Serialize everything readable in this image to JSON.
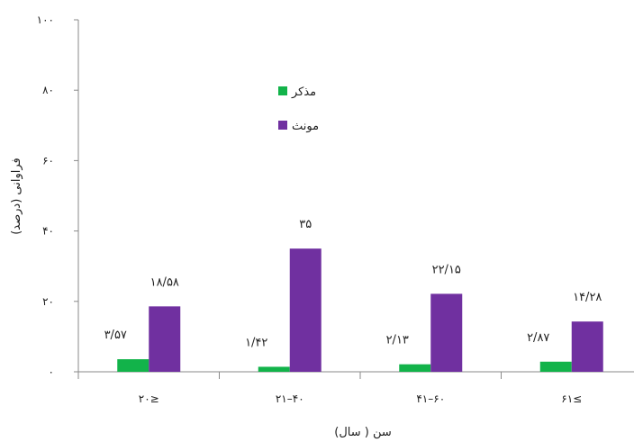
{
  "chart_data": {
    "type": "bar",
    "categories": [
      "۲۰≥",
      "۲۱–۴۰",
      "۴۱–۶۰",
      "۶۱≤"
    ],
    "series": [
      {
        "name": "مذکر",
        "color": "#12b34a",
        "values": [
          3.57,
          1.42,
          2.13,
          2.87
        ],
        "labels": [
          "۳/۵۷",
          "۱/۴۲",
          "۲/۱۳",
          "۲/۸۷"
        ]
      },
      {
        "name": "مونث",
        "color": "#7030a0",
        "values": [
          18.58,
          35,
          22.15,
          14.28
        ],
        "labels": [
          "۱۸/۵۸",
          "۳۵",
          "۲۲/۱۵",
          "۱۴/۲۸"
        ]
      }
    ],
    "ylim": [
      0,
      100
    ],
    "yticks": [
      0,
      20,
      40,
      60,
      80,
      100
    ],
    "ytick_labels": [
      "۰",
      "۲۰",
      "۴۰",
      "۶۰",
      "۸۰",
      "۱۰۰"
    ],
    "xlabel": "سن ( سال)",
    "ylabel": "فراوانی (درصد)",
    "title": "",
    "legend_position": "upper-center"
  }
}
